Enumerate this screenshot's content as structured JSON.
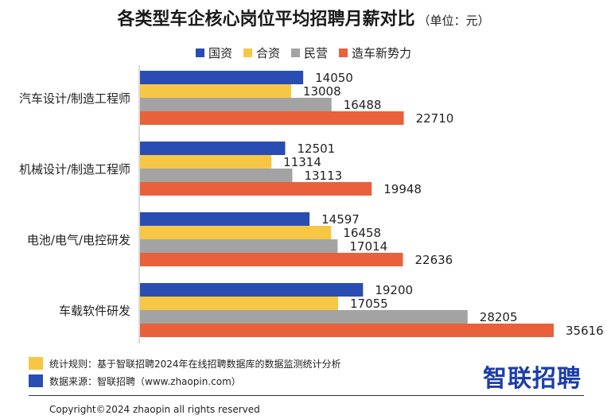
{
  "header": {
    "title": "各类型车企核心岗位平均招聘月薪对比",
    "subtitle": "（单位：元）"
  },
  "legend": [
    {
      "name": "国资",
      "color": "#2a4db3"
    },
    {
      "name": "合资",
      "color": "#f6c744"
    },
    {
      "name": "民营",
      "color": "#a3a3a3"
    },
    {
      "name": "造车新势力",
      "color": "#e8613a"
    }
  ],
  "chart_data": {
    "type": "bar",
    "orientation": "horizontal",
    "categories": [
      "汽车设计/制造工程师",
      "机械设计/制造工程师",
      "电池/电气/电控研发",
      "车载软件研发"
    ],
    "series": [
      {
        "name": "国资",
        "color": "#2a4db3",
        "values": [
          14050,
          12501,
          14597,
          19200
        ]
      },
      {
        "name": "合资",
        "color": "#f6c744",
        "values": [
          13008,
          11314,
          16458,
          17055
        ]
      },
      {
        "name": "民营",
        "color": "#a3a3a3",
        "values": [
          16488,
          13113,
          17014,
          28205
        ]
      },
      {
        "name": "造车新势力",
        "color": "#e8613a",
        "values": [
          22710,
          19948,
          22636,
          35616
        ]
      }
    ],
    "legend_position": "top",
    "grid": false
  },
  "footer": {
    "notes": [
      {
        "text": "统计规则：基于智联招聘2024年在线招聘数据库的数据监测统计分析",
        "color": "#f6c744"
      },
      {
        "text": "数据来源：智联招聘（www.zhaopin.com）",
        "color": "#2a4db3"
      }
    ],
    "brand": "智联招聘",
    "copyright": "Copyright©2024 zhaopin all rights reserved"
  }
}
